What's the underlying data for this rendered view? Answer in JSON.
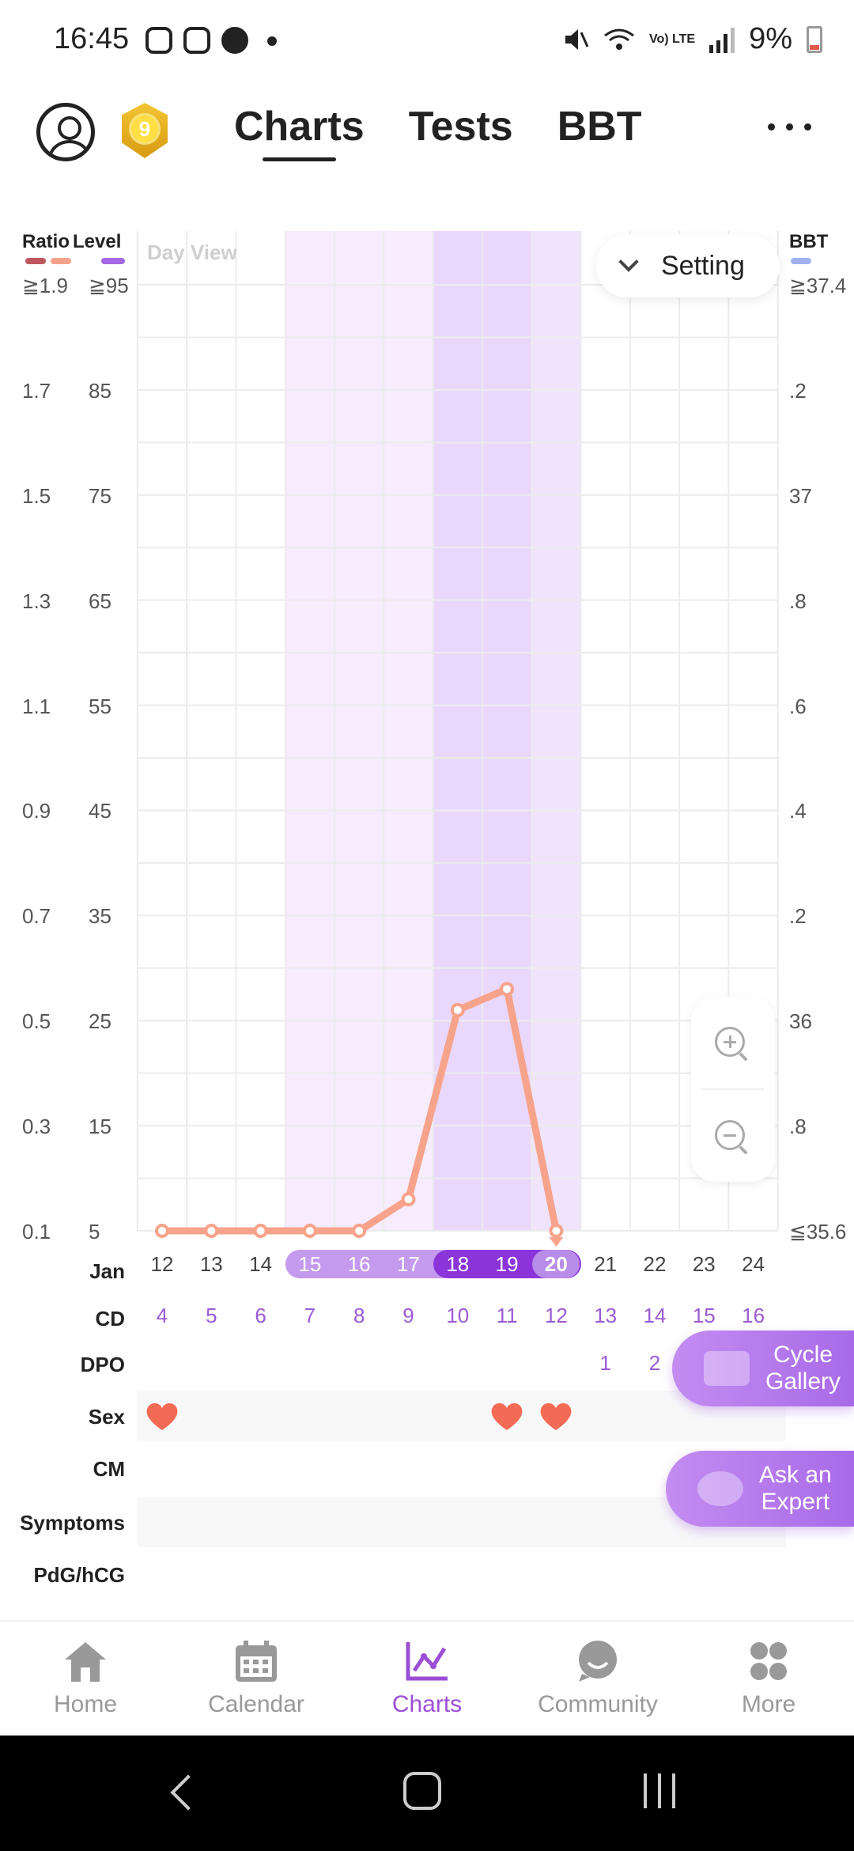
{
  "status_bar": {
    "time": "16:45",
    "battery": "9%",
    "network": "Vo) LTE",
    "left_icons": [
      "instagram-icon",
      "gallery-icon",
      "pinterest-icon",
      "dot-icon"
    ],
    "right_icons": [
      "mute-icon",
      "wifi-icon",
      "signal-icon",
      "battery-icon"
    ]
  },
  "header": {
    "tabs": [
      {
        "label": "Charts",
        "active": true
      },
      {
        "label": "Tests",
        "active": false
      },
      {
        "label": "BBT",
        "active": false
      }
    ],
    "badge_level": "9"
  },
  "chart_view": {
    "day_view_label": "Day View",
    "setting_label": "Setting"
  },
  "axes": {
    "ratio_title": "Ratio",
    "level_title": "Level",
    "bbt_title": "BBT",
    "ratio_ticks": [
      "≧1.9",
      "1.7",
      "1.5",
      "1.3",
      "1.1",
      "0.9",
      "0.7",
      "0.5",
      "0.3",
      "0.1"
    ],
    "level_ticks": [
      "≧95",
      "85",
      "75",
      "65",
      "55",
      "45",
      "35",
      "25",
      "15",
      "5"
    ],
    "bbt_ticks": [
      "≧37.4",
      ".2",
      "37",
      ".8",
      ".6",
      ".4",
      ".2",
      "36",
      ".8",
      "≦35.6"
    ]
  },
  "rows": {
    "date_label": "Jan",
    "cd_label": "CD",
    "dpo_label": "DPO",
    "sex_label": "Sex",
    "cm_label": "CM",
    "symptoms_label": "Symptoms",
    "pdg_label": "PdG/hCG",
    "dates": [
      "12",
      "13",
      "14",
      "15",
      "16",
      "17",
      "18",
      "19",
      "20",
      "21",
      "22",
      "23",
      "24"
    ],
    "cd": [
      "4",
      "5",
      "6",
      "7",
      "8",
      "9",
      "10",
      "11",
      "12",
      "13",
      "14",
      "15",
      "16"
    ],
    "dpo": [
      "",
      "",
      "",
      "",
      "",
      "",
      "",
      "",
      "",
      "1",
      "2",
      "",
      ""
    ],
    "sex": [
      true,
      false,
      false,
      false,
      false,
      false,
      false,
      true,
      true,
      false,
      false,
      false,
      false
    ],
    "date_style": [
      "plain",
      "plain",
      "plain",
      "light",
      "light",
      "light",
      "dark",
      "dark",
      "today",
      "plain",
      "plain",
      "plain",
      "plain"
    ]
  },
  "chart_data": {
    "type": "line",
    "x": [
      "12",
      "13",
      "14",
      "15",
      "16",
      "17",
      "18",
      "19",
      "20"
    ],
    "series": [
      {
        "values": [
          5,
          5,
          5,
          5,
          5,
          8,
          26,
          28,
          5
        ],
        "color": "#f7a38c"
      }
    ],
    "ylim": [
      5,
      95
    ],
    "shaded_days": {
      "light": [
        "15",
        "16",
        "17"
      ],
      "dark": [
        "18",
        "19"
      ],
      "today": "20"
    },
    "colors": {
      "line": "#f7a38c",
      "light_band": "#f6ecfd",
      "dark_band": "#ead8fc",
      "today_band": "#f0e4fd"
    }
  },
  "fab": {
    "cycle_gallery": "Cycle\nGallery",
    "ask_expert": "Ask an\nExpert"
  },
  "bottom_nav": [
    {
      "label": "Home",
      "icon": "home-icon",
      "active": false
    },
    {
      "label": "Calendar",
      "icon": "calendar-icon",
      "active": false
    },
    {
      "label": "Charts",
      "icon": "chart-icon",
      "active": true
    },
    {
      "label": "Community",
      "icon": "community-icon",
      "active": false
    },
    {
      "label": "More",
      "icon": "more-icon",
      "active": false
    }
  ],
  "colors": {
    "accent": "#9b4fd6",
    "line": "#f7a38c",
    "heart": "#f36a55"
  }
}
